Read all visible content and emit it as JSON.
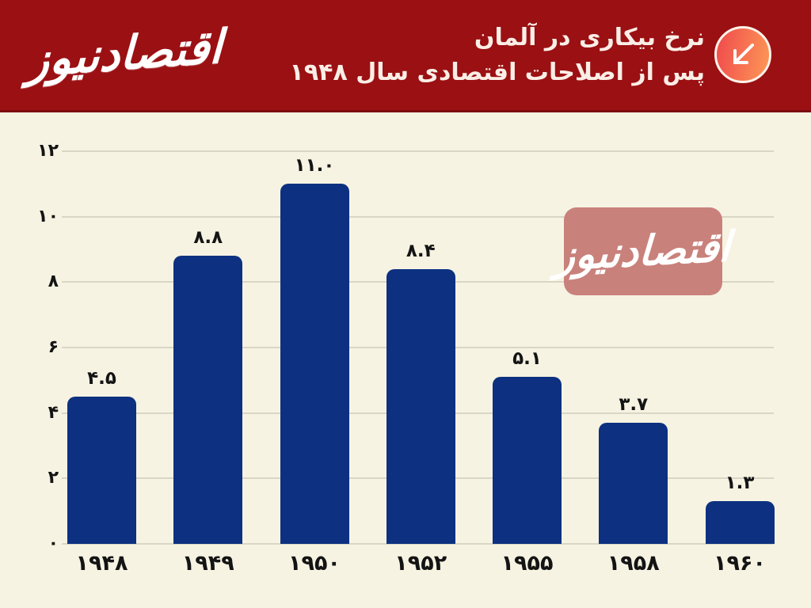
{
  "header": {
    "logo_text": "اقتصادنیوز",
    "title_line1": "نرخ بیکاری در آلمان",
    "title_line2": "پس از اصلاحات اقتصادی سال ۱۹۴۸",
    "bg_color": "#9b1013",
    "icon_gradient": [
      "#f1514d",
      "#fc9156"
    ]
  },
  "watermark": {
    "text": "اقتصادنیوز",
    "bg_color": "#c9817b"
  },
  "chart_data": {
    "type": "bar",
    "title": "نرخ بیکاری در آلمان پس از اصلاحات اقتصادی سال ۱۹۴۸",
    "title_translation": "Unemployment rate in Germany after the 1948 economic reforms",
    "categories": [
      "۱۹۴۸",
      "۱۹۴۹",
      "۱۹۵۰",
      "۱۹۵۲",
      "۱۹۵۵",
      "۱۹۵۸",
      "۱۹۶۰"
    ],
    "categories_western": [
      1948,
      1949,
      1950,
      1952,
      1955,
      1958,
      1960
    ],
    "values": [
      4.5,
      8.8,
      11.0,
      8.4,
      5.1,
      3.7,
      1.3
    ],
    "value_labels": [
      "۴.۵",
      "۸.۸",
      "۱۱.۰",
      "۸.۴",
      "۵.۱",
      "۳.۷",
      "۱.۳"
    ],
    "xlabel": "",
    "ylabel": "",
    "ylim": [
      0,
      12
    ],
    "ytick_step": 2,
    "ytick_labels": [
      "۰",
      "۲",
      "۴",
      "۶",
      "۸",
      "۱۰",
      "۱۲"
    ],
    "grid": true,
    "legend": "none",
    "bar_color": "#0d3180",
    "background_color": "#f6f3e2",
    "gridline_color": "#d9d6c6",
    "label_color": "#141414"
  }
}
